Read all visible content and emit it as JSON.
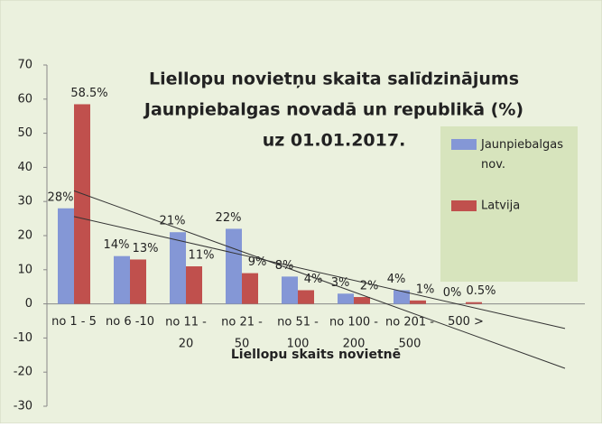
{
  "chart_data": {
    "type": "bar",
    "title": [
      "Liellopu novietņu skaita salīdzinājums",
      "Jaunpiebalgas novadā un republikā (%)",
      "uz 01.01.2017."
    ],
    "x_label": "Liellopu skaits novietnē",
    "categories": [
      "no 1 - 5",
      "no 6 -10",
      "no 11 - 20",
      "no 21 - 50",
      "no 51 - 100",
      "no 100 - 200",
      "no 201 - 500",
      "500 >"
    ],
    "series": [
      {
        "name": "Jaunpiebalgas nov.",
        "color": "#8497d6",
        "values": [
          28,
          14,
          21,
          22,
          8,
          3,
          4,
          0
        ],
        "value_labels": [
          "28%",
          "14%",
          "21%",
          "22%",
          "8%",
          "3%",
          "4%",
          "0%"
        ]
      },
      {
        "name": "Latvija",
        "color": "#c0504d",
        "values": [
          58.5,
          13,
          11,
          9,
          4,
          2,
          1,
          0.5
        ],
        "value_labels": [
          "58.5%",
          "13%",
          "11%",
          "9%",
          "4%",
          "2%",
          "1%",
          "0.5%"
        ]
      }
    ],
    "ylim": [
      -30,
      70
    ],
    "yticks": [
      -30,
      -20,
      -10,
      0,
      10,
      20,
      30,
      40,
      50,
      60,
      70
    ],
    "trendline": true,
    "legend": "right"
  }
}
